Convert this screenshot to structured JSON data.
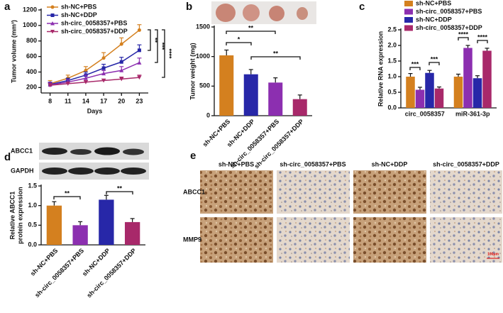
{
  "chart_data": [
    {
      "type": "line",
      "panel": "a",
      "ylabel": "Tumor volume (mm³)",
      "xlabel": "Days",
      "x": [
        8,
        11,
        14,
        17,
        20,
        23
      ],
      "xlim": [
        6.5,
        24.5
      ],
      "xticks": [
        8,
        11,
        14,
        17,
        20,
        23
      ],
      "ylim": [
        130,
        1200
      ],
      "yticks": [
        200,
        400,
        600,
        800,
        1000,
        1200
      ],
      "legend": "upper left",
      "series": [
        {
          "name": "sh-NC+PBS",
          "color": "#d4801f",
          "values": [
            250,
            320,
            420,
            580,
            760,
            940
          ],
          "errors": [
            40,
            40,
            50,
            70,
            80,
            70
          ]
        },
        {
          "name": "sh-NC+DDP",
          "color": "#2727a8",
          "values": [
            240,
            290,
            360,
            450,
            530,
            680
          ],
          "errors": [
            30,
            30,
            40,
            50,
            60,
            70
          ]
        },
        {
          "name": "sh-circ_0058357+PBS",
          "color": "#8c2fb0",
          "values": [
            235,
            270,
            320,
            380,
            420,
            520
          ],
          "errors": [
            30,
            30,
            40,
            40,
            50,
            60
          ]
        },
        {
          "name": "sh-circ_0058357+DDP",
          "color": "#a8296a",
          "values": [
            230,
            250,
            270,
            290,
            310,
            330
          ],
          "errors": [
            20,
            20,
            20,
            20,
            25,
            30
          ]
        }
      ],
      "annotations": [
        "**",
        "***",
        "****"
      ]
    },
    {
      "type": "bar",
      "panel": "b",
      "ylabel": "Tumor weight (mg)",
      "categories": [
        "sh-NC+PBS",
        "sh-NC+DDP",
        "sh-circ_0058357+PBS",
        "sh-circ_0058357+DDP"
      ],
      "values": [
        1020,
        700,
        560,
        280
      ],
      "errors": [
        90,
        80,
        80,
        70
      ],
      "colors": [
        "#d4801f",
        "#2727a8",
        "#8c2fb0",
        "#a8296a"
      ],
      "ylim": [
        0,
        1500
      ],
      "yticks": [
        0,
        500,
        1000,
        1500
      ],
      "annotations": [
        "*",
        "**",
        "**"
      ]
    },
    {
      "type": "bar",
      "panel": "c",
      "ylabel": "Relative RNA expression",
      "categories": [
        "circ_0058357",
        "miR-361-3p"
      ],
      "legend": "top",
      "series": [
        {
          "name": "sh-NC+PBS",
          "color": "#d4801f",
          "values": [
            1.0,
            1.0
          ],
          "errors": [
            0.1,
            0.08
          ]
        },
        {
          "name": "sh-circ_0058357+PBS",
          "color": "#8c2fb0",
          "values": [
            0.58,
            1.92
          ],
          "errors": [
            0.08,
            0.08
          ]
        },
        {
          "name": "sh-NC+DDP",
          "color": "#2727a8",
          "values": [
            1.12,
            0.95
          ],
          "errors": [
            0.08,
            0.08
          ]
        },
        {
          "name": "sh-circ_0058357+DDP",
          "color": "#a8296a",
          "values": [
            0.62,
            1.83
          ],
          "errors": [
            0.05,
            0.08
          ]
        }
      ],
      "ylim": [
        0,
        2.5
      ],
      "yticks": [
        {
          "value": 0,
          "label": "0.0"
        },
        0.5,
        {
          "value": 1,
          "label": "1.0"
        },
        1.5,
        {
          "value": 2,
          "label": "2.0"
        },
        2.5
      ],
      "annotations": [
        "***",
        "***",
        "****",
        "****"
      ]
    },
    {
      "type": "bar",
      "panel": "d",
      "ylabel": [
        "Relative ABCC1",
        "protein expression"
      ],
      "categories": [
        "sh-NC+PBS",
        "sh-circ_0058357+PBS",
        "sh-NC+DDP",
        "sh-circ_0058357+DDP"
      ],
      "values": [
        1.0,
        0.5,
        1.15,
        0.58
      ],
      "errors": [
        0.1,
        0.09,
        0.11,
        0.09
      ],
      "colors": [
        "#d4801f",
        "#8c2fb0",
        "#2727a8",
        "#a8296a"
      ],
      "ylim": [
        0,
        1.5
      ],
      "yticks": [
        {
          "value": 0,
          "label": "0.0"
        },
        0.5,
        {
          "value": 1,
          "label": "1.0"
        },
        1.5
      ],
      "annotations": [
        "**",
        "**"
      ]
    }
  ],
  "blot": {
    "rows": [
      "ABCC1",
      "GAPDH"
    ]
  },
  "ihc": {
    "panel": "e",
    "columns": [
      "sh-NC+PBS",
      "sh-circ_0058357+PBS",
      "sh-NC+DDP",
      "sh-circ_0058357+DDP"
    ],
    "rows": [
      "ABCC1",
      "MMP9"
    ],
    "scale_bar": "100μm"
  }
}
